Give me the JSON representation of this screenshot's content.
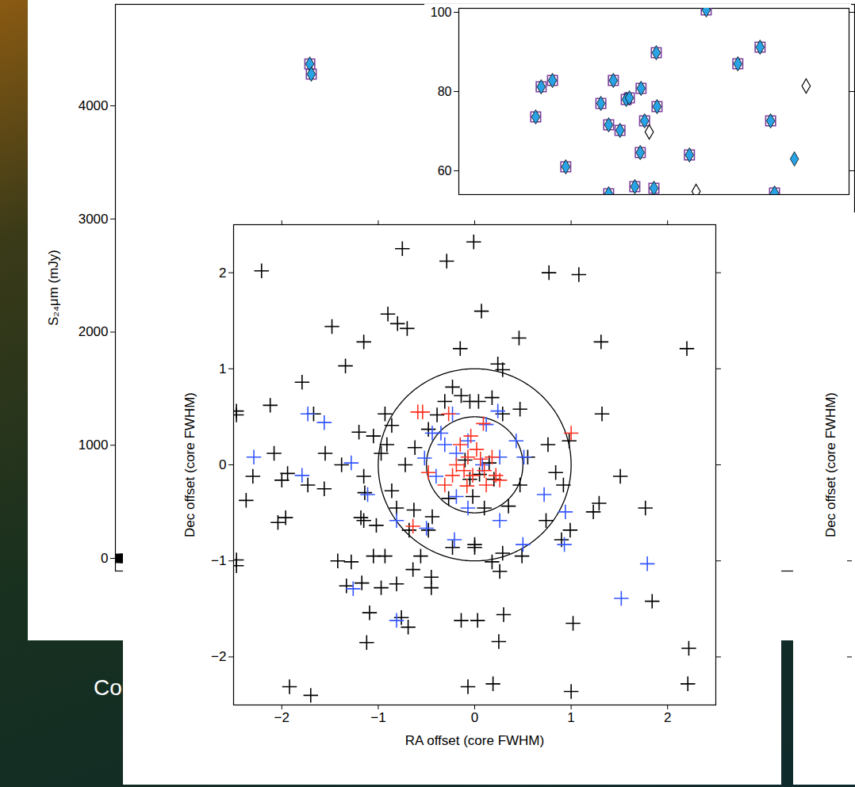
{
  "slide_text": "Co",
  "chart_data": [
    {
      "type": "scatter",
      "ylabel": "S₂₄μm (mJy)",
      "xlim": [
        0,
        10
      ],
      "ylim": [
        -112,
        4897
      ],
      "yticks": [
        0,
        1000,
        2000,
        3000,
        4000
      ],
      "tick_labels": "y",
      "series": [
        {
          "marker": "diamond_in_square",
          "color": "#29a3e6",
          "x": [
            2.63,
            2.65
          ],
          "y": [
            4370,
            4280
          ]
        },
        {
          "marker": "square",
          "color": "#000000",
          "x": [
            0.06,
            0.12,
            0.18,
            0.24
          ],
          "y": [
            0,
            0,
            0,
            0
          ]
        }
      ]
    },
    {
      "type": "scatter",
      "xlim": [
        0,
        10
      ],
      "ylim": [
        54,
        101
      ],
      "yticks": [
        60,
        80,
        100
      ],
      "tick_labels": "y",
      "series": [
        {
          "marker": "diamond_in_square",
          "color": "#29a3e6",
          "x": [
            1.97,
            2.11,
            2.4,
            2.74,
            3.64,
            3.84,
            3.96,
            4.13,
            4.29,
            4.37,
            4.65,
            4.67,
            4.76,
            5.06,
            5.08,
            3.84,
            4.51,
            5.0,
            5.91,
            6.34,
            7.15,
            7.72,
            7.99,
            8.09
          ],
          "y": [
            73.6,
            81.2,
            82.8,
            61,
            77,
            71.6,
            82.8,
            70.2,
            78,
            78.4,
            64.6,
            80.8,
            72.6,
            89.8,
            76.2,
            54.2,
            56,
            55.6,
            64,
            100.6,
            87,
            91.2,
            72.6,
            54.4
          ]
        },
        {
          "marker": "open_diamond",
          "color": "#000000",
          "x": [
            4.88,
            6.08,
            8.9
          ],
          "y": [
            69.8,
            54.8,
            81.4
          ]
        },
        {
          "marker": "diamond",
          "color": "#29a3e6",
          "x": [
            8.6
          ],
          "y": [
            63
          ]
        }
      ]
    },
    {
      "type": "scatter",
      "xlabel": "RA offset (core FWHM)",
      "ylabel": "Dec offset (core FWHM)",
      "xlim": [
        -2.5,
        2.5
      ],
      "ylim": [
        -2.5,
        2.5
      ],
      "xticks": [
        -2,
        -1,
        0,
        1,
        2
      ],
      "yticks": [
        -2,
        -1,
        0,
        1,
        2
      ],
      "circle_radii": [
        0.5,
        1
      ],
      "series": [
        {
          "marker": "plus",
          "color": "#000000",
          "x": [
            -2.21,
            -0.75,
            -0.29,
            -0.01,
            0.77,
            1.08,
            -0.9,
            -0.8,
            -0.7,
            -1.48,
            -1.15,
            0.07,
            -0.15,
            0.46,
            1.31,
            2.2,
            -2.47,
            -2.47,
            -2.12,
            -1.79,
            -1.67,
            -1.55,
            -1.38,
            -2.0,
            -1.94,
            -2.08,
            -1.73,
            -2.04,
            -1.96,
            -1.56,
            -1.15,
            -1.14,
            -1.18,
            -1.15,
            -1.02,
            -0.97,
            -1.05,
            -0.93,
            -0.86,
            -0.86,
            -0.81,
            -0.91,
            -0.72,
            -0.62,
            -0.48,
            -0.39,
            -0.23,
            -0.14,
            -0.05,
            0.04,
            0.18,
            0.29,
            0.24,
            0.47,
            0.29,
            -0.31,
            -0.48,
            -0.27,
            -0.02,
            0.1,
            0.35,
            0.47,
            0.55,
            0.76,
            0.84,
            0.98,
            0.92,
            0.74,
            0.9,
            0.99,
            0.49,
            0.29,
            0.26,
            0.18,
            0,
            0,
            -0.23,
            -0.68,
            -1.05,
            -0.93,
            -0.97,
            -0.56,
            -0.45,
            -0.45,
            -0.64,
            -0.76,
            -0.69,
            -0.14,
            0.03,
            0.3,
            0.25,
            1.02,
            1.0,
            1.77,
            1.29,
            1.32,
            1.51,
            1.23,
            1.84,
            2.22,
            2.21,
            -1.42,
            -1.28,
            -1.17,
            -1.09,
            -0.81,
            -1.33,
            -1.12,
            -1.92,
            -1.7,
            -0.07,
            0.19,
            -1.34,
            -1.2,
            -0.63,
            -0.44,
            -2.37,
            -2.3,
            -2.47,
            -2.47,
            -0.1,
            0.05,
            0.15,
            -0.05,
            0.2
          ],
          "y": [
            2.02,
            2.25,
            2.12,
            2.32,
            2.0,
            1.98,
            1.57,
            1.47,
            1.42,
            1.44,
            1.28,
            1.6,
            1.21,
            1.32,
            1.28,
            1.21,
            0.56,
            0.52,
            0.62,
            0.86,
            0.53,
            0.12,
            0,
            -0.16,
            -0.09,
            0.12,
            -0.21,
            -0.6,
            -0.55,
            -0.25,
            -0.12,
            -0.29,
            -0.55,
            -0.58,
            -0.63,
            0.12,
            0.3,
            0.53,
            0.41,
            -0.27,
            -0.45,
            0.21,
            0,
            0.18,
            0.37,
            0.52,
            0.81,
            0.72,
            0.66,
            0.66,
            0.7,
            0.99,
            1.05,
            0.58,
            0.53,
            0.66,
            -0.68,
            -0.35,
            -0.33,
            -0.45,
            -0.43,
            -0.21,
            0.08,
            0.21,
            -0.08,
            0.25,
            -0.21,
            -0.58,
            -0.78,
            -0.68,
            -0.95,
            -0.92,
            -1.11,
            -1.01,
            -0.86,
            -0.83,
            -0.86,
            -0.68,
            -0.95,
            -0.95,
            -1.28,
            -0.95,
            -1.28,
            -1.17,
            -1.09,
            -1.59,
            -1.69,
            -1.62,
            -1.62,
            -1.56,
            -1.84,
            -1.65,
            -2.36,
            -0.45,
            -0.4,
            0.53,
            -0.12,
            -0.49,
            -1.42,
            -1.91,
            -2.28,
            -1.0,
            -1.01,
            -1.23,
            -1.54,
            -1.24,
            -1.26,
            -1.85,
            -2.31,
            -2.4,
            -2.31,
            -2.28,
            1.03,
            0.34,
            -0.47,
            -0.54,
            -0.37,
            -0.12,
            -1.05,
            -0.99,
            0.05,
            -0.1,
            0.02,
            -0.15,
            -0.15
          ]
        },
        {
          "marker": "plus",
          "color": "#3355ff",
          "x": [
            -1.73,
            -1.56,
            -1.79,
            -1.28,
            -2.29,
            -1.11,
            -0.81,
            -0.5,
            -0.21,
            0.26,
            0.5,
            0.72,
            0.94,
            0.93,
            1.79,
            1.52,
            -0.81,
            -1.26,
            0.24,
            -0.23,
            -0.44,
            -0.31,
            -0.07,
            0.12,
            -0.19,
            -0.4,
            -0.19,
            0.08,
            0.26,
            0.43,
            0.51,
            -0.52,
            -0.35,
            -0.07
          ],
          "y": [
            0.53,
            0.44,
            -0.11,
            0.02,
            0.08,
            -0.31,
            -0.58,
            -0.66,
            -0.78,
            -0.58,
            -0.83,
            -0.31,
            -0.49,
            -0.83,
            -1.03,
            -1.39,
            -1.62,
            -1.29,
            0.56,
            0.53,
            0.33,
            0.21,
            0.25,
            0.42,
            0.12,
            -0.12,
            -0.33,
            0,
            0.08,
            0.25,
            0.08,
            0.07,
            0.33,
            -0.45
          ]
        },
        {
          "marker": "plus",
          "color": "#ff3322",
          "x": [
            -0.27,
            -0.59,
            0.09,
            -0.04,
            -0.15,
            0.02,
            -0.07,
            0.06,
            -0.19,
            -0.11,
            0.1,
            0.18,
            -0.02,
            -0.23,
            0.22,
            -0.31,
            -0.08,
            0.12,
            -0.64,
            1.0,
            -0.48,
            0.26,
            -0.54
          ],
          "y": [
            0.53,
            0.55,
            0.43,
            0.3,
            0.21,
            0.16,
            0.08,
            0.06,
            0,
            -0.06,
            -0.06,
            0.08,
            -0.11,
            -0.11,
            -0.11,
            -0.21,
            -0.22,
            -0.21,
            -0.64,
            0.33,
            -0.08,
            -0.16,
            0.55
          ]
        }
      ]
    },
    {
      "type": "scatter",
      "ylabel": "Dec offset (core FWHM)",
      "ylim": [
        -2.5,
        2.5
      ],
      "yticks": [
        -2,
        -1
      ],
      "tick_labels": false
    }
  ]
}
